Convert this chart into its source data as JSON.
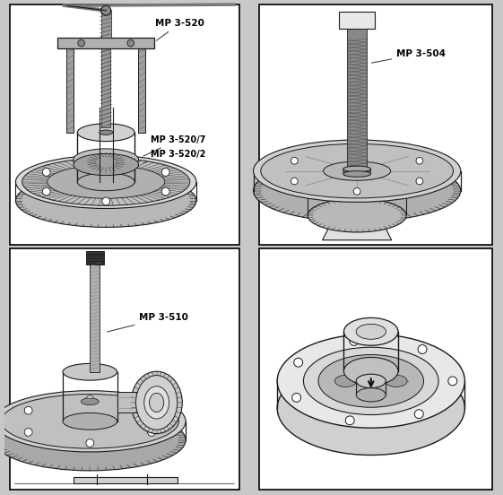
{
  "page_bg": "#c8c8c8",
  "panel_bg": "#ffffff",
  "border_color": "#000000",
  "border_lw": 1.2,
  "lc": "#1a1a1a",
  "tc": "#000000",
  "fs": 7.0,
  "panels": {
    "tl": [
      0.01,
      0.505,
      0.465,
      0.488
    ],
    "tr": [
      0.515,
      0.505,
      0.473,
      0.488
    ],
    "bl": [
      0.01,
      0.01,
      0.465,
      0.488
    ],
    "br": [
      0.515,
      0.01,
      0.473,
      0.488
    ]
  }
}
